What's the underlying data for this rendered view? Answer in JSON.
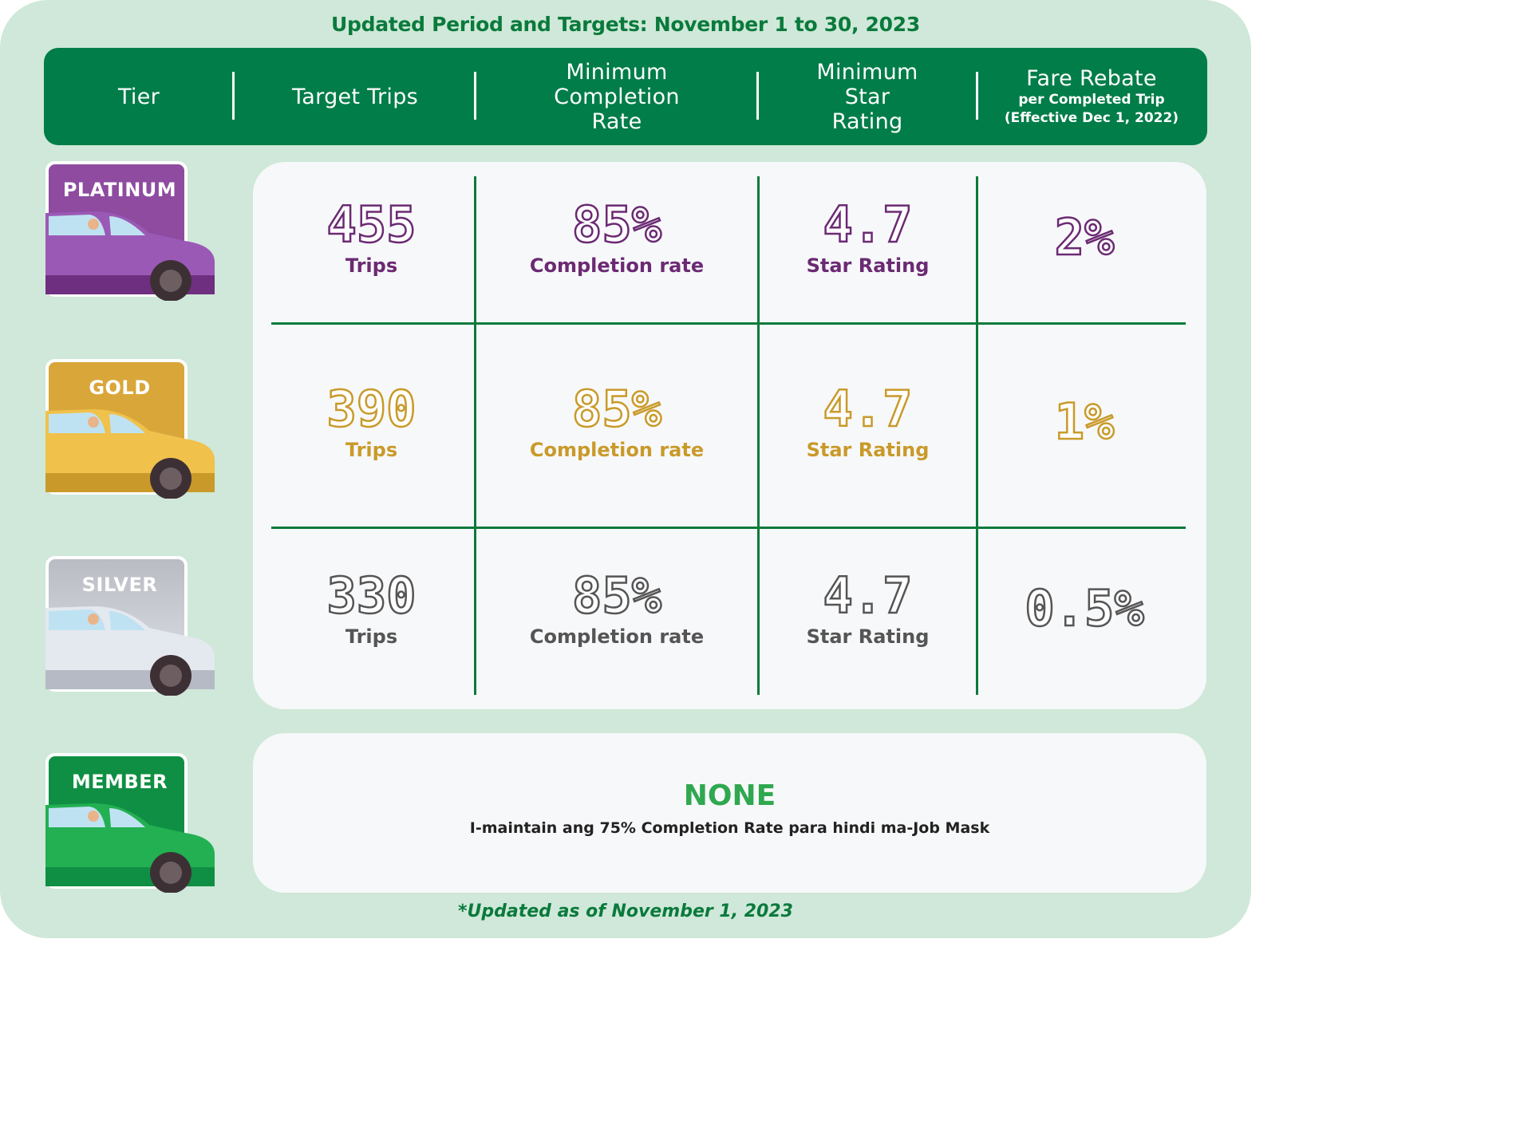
{
  "title": "Updated Period and Targets: November 1 to 30, 2023",
  "header": {
    "tier": "Tier",
    "target_trips": "Target Trips",
    "min_completion": [
      "Minimum",
      "Completion",
      "Rate"
    ],
    "min_star": [
      "Minimum",
      "Star",
      "Rating"
    ],
    "fare_rebate": "Fare Rebate",
    "fare_rebate_sub1": "per Completed Trip",
    "fare_rebate_sub2": "(Effective Dec 1, 2022)"
  },
  "tiers": [
    {
      "name": "PLATINUM",
      "color": "#6b2a73",
      "car_color": "#8e4ba0",
      "trips": "455",
      "trips_label": "Trips",
      "completion": "85%",
      "completion_label": "Completion rate",
      "rating": "4.7",
      "rating_label": "Star Rating",
      "rebate": "2%"
    },
    {
      "name": "GOLD",
      "color": "#c99a2a",
      "car_color": "#e8b53c",
      "trips": "390",
      "trips_label": "Trips",
      "completion": "85%",
      "completion_label": "Completion rate",
      "rating": "4.7",
      "rating_label": "Star Rating",
      "rebate": "1%"
    },
    {
      "name": "SILVER",
      "color": "#555555",
      "car_color": "#d4d8e0",
      "trips": "330",
      "trips_label": "Trips",
      "completion": "85%",
      "completion_label": "Completion rate",
      "rating": "4.7",
      "rating_label": "Star Rating",
      "rebate": "0.5%"
    }
  ],
  "member": {
    "name": "MEMBER",
    "car_color": "#1aa14a",
    "none": "NONE",
    "note": "I-maintain ang 75% Completion Rate para hindi ma-Job Mask"
  },
  "footnote": "*Updated as of November 1, 2023",
  "colors": {
    "brand_green": "#007d48",
    "background": "#cfe8d9",
    "panel": "#f7f8fa"
  }
}
